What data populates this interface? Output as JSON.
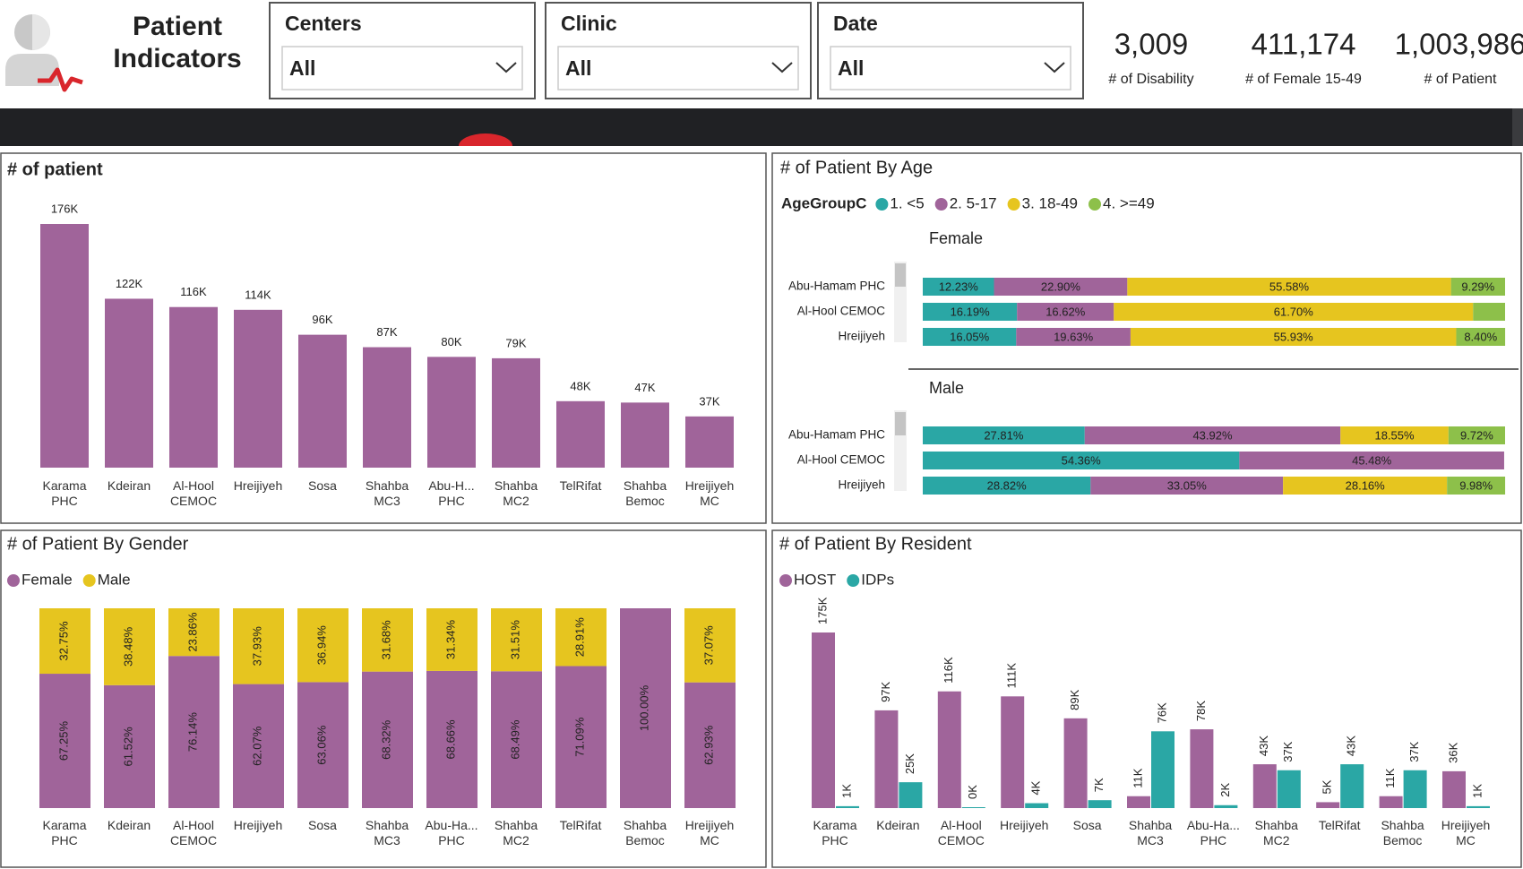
{
  "header": {
    "title": "Patient Indicators"
  },
  "slicers": [
    {
      "label": "Centers",
      "value": "All"
    },
    {
      "label": "Clinic",
      "value": "All"
    },
    {
      "label": "Date",
      "value": "All"
    }
  ],
  "kpis": [
    {
      "value": "3,009",
      "label": "# of Disability"
    },
    {
      "value": "411,174",
      "label": "# of Female 15-49"
    },
    {
      "value": "1,003,986",
      "label": "# of Patient"
    }
  ],
  "chart_data": [
    {
      "type": "bar",
      "title": "# of patient",
      "categories": [
        "Karama PHC",
        "Kdeiran",
        "Al-Hool CEMOC",
        "Hreijiyeh",
        "Sosa",
        "Shahba MC3",
        "Abu-H... PHC",
        "Shahba MC2",
        "TelRifat",
        "Shahba Bemoc",
        "Hreijiyeh MC"
      ],
      "values": [
        176000,
        122000,
        116000,
        114000,
        96000,
        87000,
        80000,
        79000,
        48000,
        47000,
        37000
      ],
      "value_labels": [
        "176K",
        "122K",
        "116K",
        "114K",
        "96K",
        "87K",
        "80K",
        "79K",
        "48K",
        "47K",
        "37K"
      ],
      "color": "#a0649a"
    },
    {
      "type": "stacked-bar-h",
      "title": "# of Patient By Age",
      "legend_title": "AgeGroupC",
      "xlim": [
        0,
        100
      ],
      "series": [
        {
          "name": "1. <5",
          "color": "#2aa7a5"
        },
        {
          "name": "2. 5-17",
          "color": "#a0649a"
        },
        {
          "name": "3. 18-49",
          "color": "#e6c51f"
        },
        {
          "name": "4. >=49",
          "color": "#8dc04a"
        }
      ],
      "panels": [
        {
          "title": "Female",
          "categories": [
            "Abu-Hamam PHC",
            "Al-Hool CEMOC",
            "Hreijiyeh"
          ],
          "values": [
            [
              12.23,
              22.9,
              55.58,
              9.29
            ],
            [
              16.19,
              16.62,
              61.7,
              5.49
            ],
            [
              16.05,
              19.63,
              55.93,
              8.4
            ]
          ],
          "value_labels": [
            [
              "12.23%",
              "22.90%",
              "55.58%",
              "9.29%"
            ],
            [
              "16.19%",
              "16.62%",
              "61.70%",
              null
            ],
            [
              "16.05%",
              "19.63%",
              "55.93%",
              "8.40%"
            ]
          ]
        },
        {
          "title": "Male",
          "categories": [
            "Abu-Hamam PHC",
            "Al-Hool CEMOC",
            "Hreijiyeh"
          ],
          "values": [
            [
              27.81,
              43.92,
              18.55,
              9.72
            ],
            [
              54.36,
              45.48,
              null,
              null
            ],
            [
              28.82,
              33.05,
              28.16,
              9.98
            ]
          ],
          "value_labels": [
            [
              "27.81%",
              "43.92%",
              "18.55%",
              "9.72%"
            ],
            [
              "54.36%",
              "45.48%",
              null,
              null
            ],
            [
              "28.82%",
              "33.05%",
              "28.16%",
              "9.98%"
            ]
          ]
        }
      ]
    },
    {
      "type": "stacked-bar-percent",
      "title": "# of Patient By Gender",
      "ylim": [
        0,
        100
      ],
      "categories": [
        "Karama PHC",
        "Kdeiran",
        "Al-Hool CEMOC",
        "Hreijiyeh",
        "Sosa",
        "Shahba MC3",
        "Abu-Ha... PHC",
        "Shahba MC2",
        "TelRifat",
        "Shahba Bemoc",
        "Hreijiyeh MC"
      ],
      "series": [
        {
          "name": "Female",
          "color": "#a0649a",
          "values": [
            67.25,
            61.52,
            76.14,
            62.07,
            63.06,
            68.32,
            68.66,
            68.49,
            71.09,
            100,
            62.93
          ],
          "value_labels": [
            "67.25%",
            "61.52%",
            "76.14%",
            "62.07%",
            "63.06%",
            "68.32%",
            "68.66%",
            "68.49%",
            "71.09%",
            "100.00%",
            "62.93%"
          ]
        },
        {
          "name": "Male",
          "color": "#e6c51f",
          "values": [
            32.75,
            38.48,
            23.86,
            37.93,
            36.94,
            31.68,
            31.34,
            31.51,
            28.91,
            null,
            37.07
          ],
          "value_labels": [
            "32.75%",
            "38.48%",
            "23.86%",
            "37.93%",
            "36.94%",
            "31.68%",
            "31.34%",
            "31.51%",
            "28.91%",
            null,
            "37.07%"
          ]
        }
      ]
    },
    {
      "type": "grouped-bar",
      "title": "# of Patient By Resident",
      "categories": [
        "Karama PHC",
        "Kdeiran",
        "Al-Hool CEMOC",
        "Hreijiyeh",
        "Sosa",
        "Shahba MC3",
        "Abu-Ha... PHC",
        "Shahba MC2",
        "TelRifat",
        "Shahba Bemoc",
        "Hreijiyeh MC"
      ],
      "series": [
        {
          "name": "HOST",
          "color": "#a0649a",
          "values": [
            175000,
            97000,
            116000,
            111000,
            89000,
            11000,
            78000,
            43000,
            5000,
            11000,
            36000
          ],
          "value_labels": [
            "175K",
            "97K",
            "116K",
            "111K",
            "89K",
            "11K",
            "78K",
            "43K",
            "5K",
            "11K",
            "36K"
          ]
        },
        {
          "name": "IDPs",
          "color": "#2aa7a5",
          "values": [
            1000,
            25000,
            0,
            4000,
            7000,
            76000,
            2000,
            37000,
            43000,
            37000,
            1000
          ],
          "value_labels": [
            "1K",
            "25K",
            "0K",
            "4K",
            "7K",
            "76K",
            "2K",
            "37K",
            "43K",
            "37K",
            "1K"
          ]
        }
      ]
    }
  ]
}
